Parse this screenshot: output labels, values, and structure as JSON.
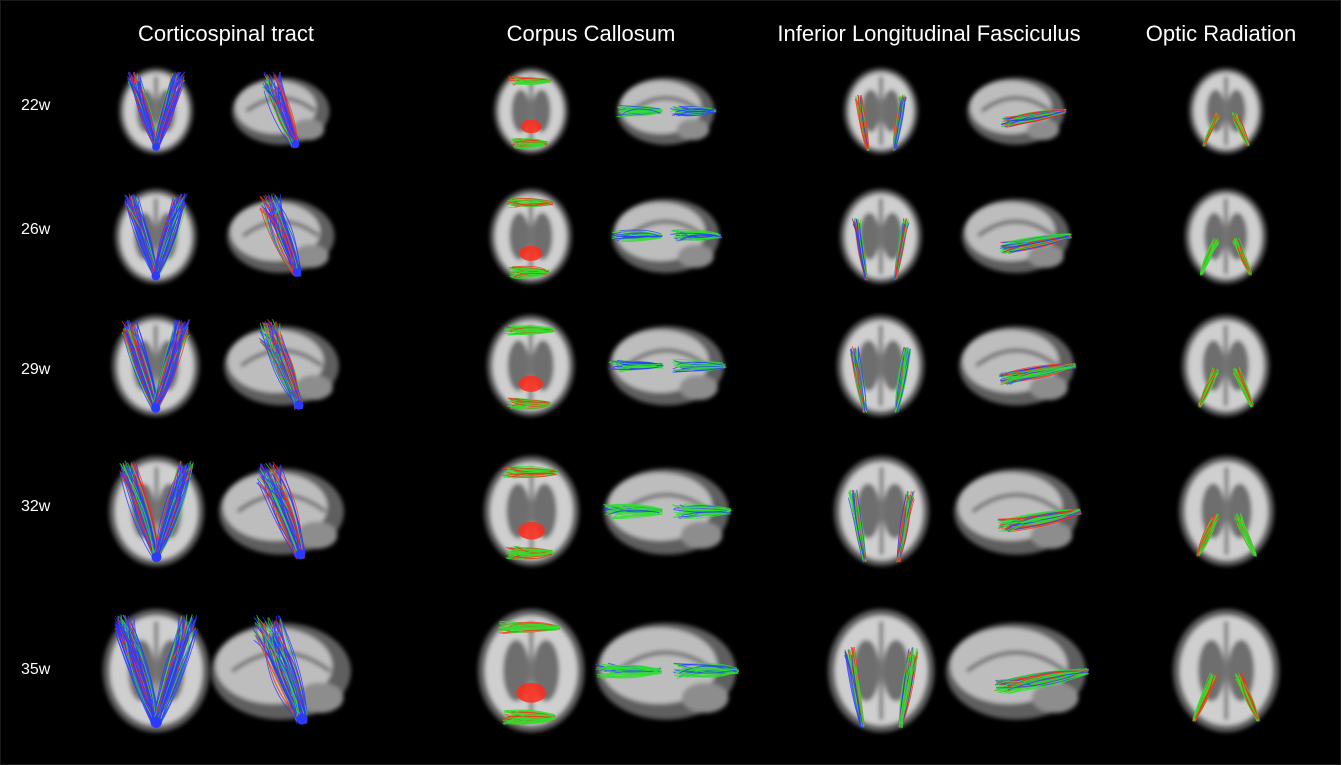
{
  "columns": [
    {
      "title": "Corticospinal tract"
    },
    {
      "title": "Corpus Callosum"
    },
    {
      "title": "Inferior Longitudinal Fasciculus"
    },
    {
      "title": "Optic Radiation"
    }
  ],
  "rows": [
    {
      "label": "22w"
    },
    {
      "label": "26w"
    },
    {
      "label": "29w"
    },
    {
      "label": "32w"
    },
    {
      "label": "35w"
    }
  ],
  "fiber_colors": {
    "left_right": "#ff2a1a",
    "anterior_posterior": "#30e030",
    "superior_inferior": "#2a3aff"
  },
  "tissue_colors": {
    "background": "#000000",
    "white_matter": "#e6e6e6",
    "gray_matter": "#7a7a7a"
  }
}
